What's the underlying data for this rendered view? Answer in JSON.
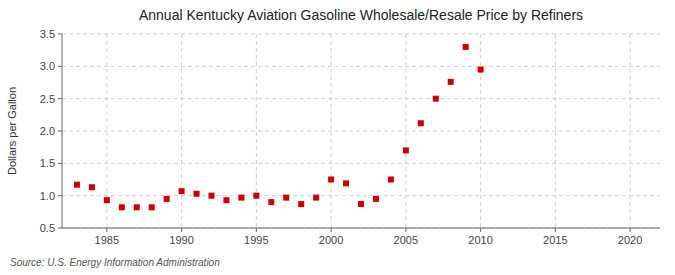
{
  "chart_data": {
    "type": "scatter",
    "title": "Annual Kentucky Aviation Gasoline Wholesale/Resale Price by Refiners",
    "y_label": "Dollars per Gallon",
    "source": "Source: U.S. Energy Information Administration",
    "x": [
      1983,
      1984,
      1985,
      1986,
      1987,
      1988,
      1989,
      1990,
      1991,
      1992,
      1993,
      1994,
      1995,
      1996,
      1997,
      1998,
      1999,
      2000,
      2001,
      2002,
      2003,
      2004,
      2005,
      2006,
      2007,
      2008,
      2009,
      2010
    ],
    "values": [
      1.17,
      1.13,
      0.93,
      0.82,
      0.82,
      0.82,
      0.95,
      1.07,
      1.03,
      1.0,
      0.93,
      0.97,
      1.0,
      0.9,
      0.97,
      0.87,
      0.97,
      1.25,
      1.19,
      0.87,
      0.95,
      1.25,
      1.7,
      2.12,
      2.5,
      2.76,
      3.3,
      2.95
    ],
    "color": "#cc0000",
    "marker": "square",
    "xlim": [
      1982,
      2022
    ],
    "xticks": [
      1985,
      1990,
      1995,
      2000,
      2005,
      2010,
      2015,
      2020
    ],
    "ylim": [
      0.5,
      3.5
    ],
    "yticks": [
      0.5,
      {
        "value": 1.0,
        "label": "1.0"
      },
      1.5,
      {
        "value": 2.0,
        "label": "2.0"
      },
      2.5,
      {
        "value": 3.0,
        "label": "3.0"
      },
      3.5
    ],
    "grid": true
  }
}
